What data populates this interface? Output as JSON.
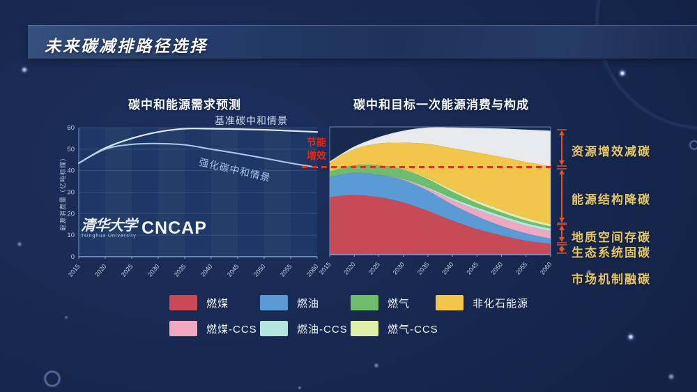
{
  "page": {
    "title": "未来碳减排路径选择"
  },
  "left_chart": {
    "title": "碳中和能源需求预测",
    "y_axis_label": "能源消费量（亿吨标煤）",
    "baseline_label": "基准碳中和情景",
    "enhanced_label": "强化碳中和情景"
  },
  "right_chart": {
    "title": "碳中和目标一次能源消费与构成",
    "saving_label": "节能\n增效"
  },
  "logo": {
    "cn": "清华大学",
    "en": "Tsinghua University",
    "abbr": "CNCAP"
  },
  "annotations": {
    "items": [
      {
        "label": "资源增效减碳",
        "arrow": [
          186,
          238
        ]
      },
      {
        "label": "能源结构降碳",
        "arrow": [
          242,
          320
        ]
      },
      {
        "label": "地质空间存碳",
        "arrow": [
          322,
          348
        ]
      },
      {
        "label": "生态系统固碳",
        "arrow": [
          351,
          363
        ]
      },
      {
        "label": "市场机制融碳",
        "arrow": null
      }
    ],
    "arrow_color": "#d8552c",
    "label_color": "#e6c765"
  },
  "legend": {
    "rows": [
      [
        {
          "label": "燃煤",
          "color": "#c94a54"
        },
        {
          "label": "燃油",
          "color": "#5b9bd5"
        },
        {
          "label": "燃气",
          "color": "#6dbd6d"
        },
        {
          "label": "非化石能源",
          "color": "#f2c64b"
        }
      ],
      [
        {
          "label": "燃煤-CCS",
          "color": "#f0a7bf"
        },
        {
          "label": "燃油-CCS",
          "color": "#b2e5dd"
        },
        {
          "label": "燃气-CCS",
          "color": "#dfeea8"
        }
      ]
    ]
  },
  "colors": {
    "dashed_line": "#e0301e",
    "saving_text": "#e12a17",
    "baseline_line": "#dfe9f6",
    "enhanced_line": "#a9cbec",
    "savings_band": "#e9eaec",
    "plot_bg_left": "#1d3866",
    "plot_bg_right": "#17294f",
    "grid": "rgba(173,199,235,0.16)",
    "axis": "#7fa6d2",
    "frame": "rgba(150,180,220,0.65)"
  },
  "chart_data": [
    {
      "type": "line",
      "title": "碳中和能源需求预测",
      "x": [
        2015,
        2020,
        2025,
        2030,
        2035,
        2040,
        2045,
        2050,
        2055,
        2060
      ],
      "series": [
        {
          "name": "基准碳中和情景",
          "values": [
            43.5,
            50.5,
            55,
            58,
            59.5,
            59.5,
            59.3,
            59,
            58.5,
            58
          ]
        },
        {
          "name": "强化碳中和情景",
          "values": [
            43.5,
            50,
            52.2,
            52.6,
            52,
            50,
            48,
            45.8,
            43.5,
            41.5
          ]
        }
      ],
      "xlabel": "",
      "ylabel": "能源消费量（亿吨标煤）",
      "ylim": [
        0,
        60
      ],
      "yticks": [
        0,
        10,
        20,
        30,
        40,
        50,
        60
      ],
      "grid": true,
      "legend_position": "inline-labels"
    },
    {
      "type": "area",
      "title": "碳中和目标一次能源消费与构成",
      "stacked": true,
      "x": [
        2015,
        2020,
        2025,
        2030,
        2035,
        2040,
        2045,
        2050,
        2055,
        2060
      ],
      "series": [
        {
          "name": "燃煤",
          "color": "#c74a57",
          "values": [
            27,
            28,
            27,
            24.5,
            20.5,
            16,
            12,
            9,
            6.5,
            5
          ]
        },
        {
          "name": "燃油",
          "color": "#5b9bd5",
          "values": [
            9.5,
            10.5,
            10.5,
            10.5,
            9.5,
            7.5,
            6,
            4.5,
            3.5,
            2.5
          ]
        },
        {
          "name": "燃煤-CCS",
          "color": "#f0a7bf",
          "values": [
            0,
            0,
            0,
            0.3,
            1,
            2,
            3,
            3.5,
            3.5,
            3.5
          ]
        },
        {
          "name": "燃油-CCS",
          "color": "#b2e5dd",
          "values": [
            0,
            0,
            0,
            0.2,
            0.5,
            1,
            1.2,
            1.3,
            1.3,
            1.2
          ]
        },
        {
          "name": "燃气",
          "color": "#6dbd6d",
          "values": [
            2.5,
            3.5,
            4.5,
            4.5,
            4,
            3,
            2,
            1.5,
            1.2,
            1
          ]
        },
        {
          "name": "燃气-CCS",
          "color": "#dfeea8",
          "values": [
            0,
            0,
            0,
            0.2,
            0.5,
            1,
            1.2,
            1.3,
            1.3,
            1.2
          ]
        },
        {
          "name": "非化石能源",
          "color": "#f2c64b",
          "values": [
            4.5,
            7.5,
            10.2,
            12.4,
            16,
            19.5,
            22.6,
            24.7,
            26.2,
            27.1
          ]
        }
      ],
      "baseline_total": {
        "name": "基准碳中和情景总量",
        "values": [
          43.5,
          50.5,
          55,
          58,
          59.5,
          59.5,
          59.3,
          59,
          58.5,
          58
        ]
      },
      "savings_band_label": "节能增效",
      "dashed_line_value": 41,
      "ylim": [
        0,
        60
      ],
      "grid": false,
      "legend_position": "bottom"
    }
  ]
}
